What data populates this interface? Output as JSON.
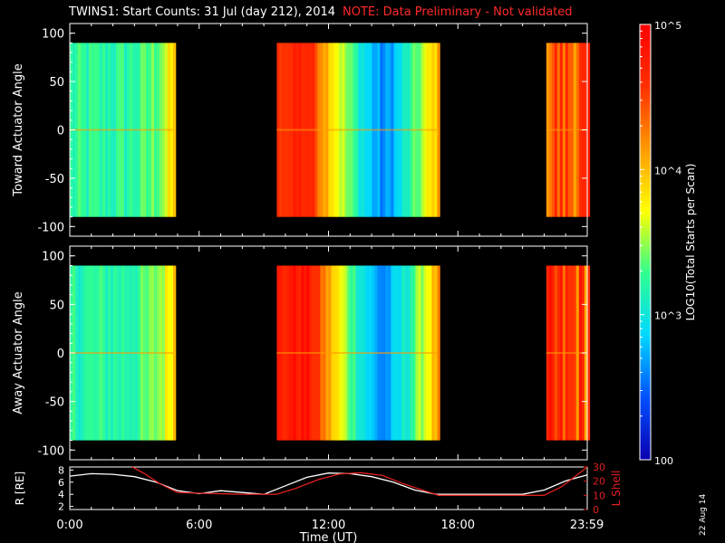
{
  "title": {
    "main": "TWINS1: Start Counts: 31 Jul (day 212), 2014",
    "note": "NOTE: Data Preliminary - Not validated"
  },
  "date_stamp": "22 Aug 14",
  "colors": {
    "background": "#000000",
    "axes": "#ffffff",
    "note": "#ff2a2a",
    "radius_line": "#ffffff",
    "lshell_line": "#e02020"
  },
  "chart_data": [
    {
      "type": "heatmap",
      "panel": "top",
      "ylabel": "Toward Actuator Angle",
      "ylim": [
        -110,
        110
      ],
      "yticks": [
        100,
        50,
        0,
        -50,
        -100
      ],
      "xlim": [
        0,
        24
      ],
      "x_unit": "hours UT",
      "data_blocks": [
        {
          "x": [
            0.0,
            4.8
          ],
          "y": [
            -90,
            90
          ],
          "pattern": "cyan-green, yellow-orange at end",
          "log_counts": [
            3.2,
            3.9
          ]
        },
        {
          "x": [
            9.6,
            17.1
          ],
          "y": [
            -90,
            90
          ],
          "pattern": "orange to blue, blue minimum near 14.5",
          "log_counts": [
            2.6,
            4.7
          ]
        },
        {
          "x": [
            22.1,
            24.0
          ],
          "y": [
            -90,
            90
          ],
          "pattern": "orange-red mixed with cyan",
          "log_counts": [
            3.2,
            4.8
          ]
        }
      ]
    },
    {
      "type": "heatmap",
      "panel": "middle",
      "ylabel": "Away Actuator Angle",
      "ylim": [
        -110,
        110
      ],
      "yticks": [
        100,
        50,
        0,
        -50,
        -100
      ],
      "xlim": [
        0,
        24
      ],
      "x_unit": "hours UT",
      "data_blocks": [
        {
          "x": [
            0.0,
            4.8
          ],
          "y": [
            -90,
            90
          ],
          "pattern": "cyan-green, yellow at top",
          "log_counts": [
            3.2,
            4.0
          ]
        },
        {
          "x": [
            9.6,
            17.1
          ],
          "y": [
            -90,
            90
          ],
          "pattern": "red-orange to blue",
          "log_counts": [
            2.6,
            4.8
          ]
        },
        {
          "x": [
            22.1,
            24.0
          ],
          "y": [
            -90,
            90
          ],
          "pattern": "red-orange with cyan streaks",
          "log_counts": [
            3.0,
            4.9
          ]
        }
      ]
    },
    {
      "type": "line",
      "panel": "bottom",
      "ylabel_left": "R [RE]",
      "ylabel_right": "L Shell",
      "ylim_left": [
        1.5,
        8.5
      ],
      "ylim_right": [
        0,
        30
      ],
      "yticks_left": [
        "8",
        "6",
        "4",
        "2"
      ],
      "yticks_right": [
        "30",
        "20",
        "10",
        "0"
      ],
      "xlabel": "Time (UT)",
      "xlim": [
        0,
        24
      ],
      "xticks": [
        0,
        6,
        12,
        18,
        23.983
      ],
      "xtick_labels": [
        "0:00",
        "6:00",
        "12:00",
        "18:00",
        "23:59"
      ],
      "series": [
        {
          "name": "R",
          "axis": "left",
          "x": [
            0.0,
            1.0,
            2.0,
            3.0,
            4.0,
            5.0,
            6.0,
            7.0,
            8.0,
            9.0,
            10.0,
            11.0,
            12.0,
            13.0,
            14.0,
            15.0,
            16.0,
            17.0,
            18.0,
            19.0,
            20.0,
            21.0,
            22.0,
            23.0,
            24.0
          ],
          "values": [
            7.0,
            7.4,
            7.3,
            6.9,
            6.0,
            4.6,
            4.1,
            4.6,
            4.3,
            4.0,
            5.4,
            6.8,
            7.5,
            7.4,
            6.9,
            6.0,
            4.7,
            4.0,
            4.0,
            4.0,
            4.0,
            4.0,
            4.7,
            6.2,
            7.2
          ]
        },
        {
          "name": "L Shell",
          "axis": "right",
          "x": [
            2.9,
            3.5,
            4.2,
            5.0,
            6.0,
            8.0,
            9.6,
            10.5,
            11.5,
            12.5,
            13.5,
            14.5,
            15.5,
            16.5,
            17.1,
            18.0,
            20.0,
            22.0,
            22.8,
            23.5,
            24.0
          ],
          "values": [
            30.0,
            25.0,
            18.0,
            12.0,
            11.5,
            10.8,
            10.8,
            15.0,
            21.0,
            25.0,
            26.0,
            24.0,
            18.0,
            13.0,
            10.0,
            10.0,
            10.0,
            10.0,
            16.0,
            24.0,
            30.0
          ]
        }
      ]
    },
    {
      "type": "heatmap",
      "panel": "colorbar",
      "label": "LOG10(Total Starts per Scan)",
      "scale": "log",
      "range": [
        100,
        100000
      ],
      "tick_labels": [
        "10^5",
        "10^4",
        "10^3",
        "100"
      ],
      "colorscale": [
        "#0a00b0",
        "#0050ff",
        "#00d8ff",
        "#30ff90",
        "#ffff00",
        "#ff9a00",
        "#ff3000",
        "#ff0000"
      ]
    }
  ]
}
